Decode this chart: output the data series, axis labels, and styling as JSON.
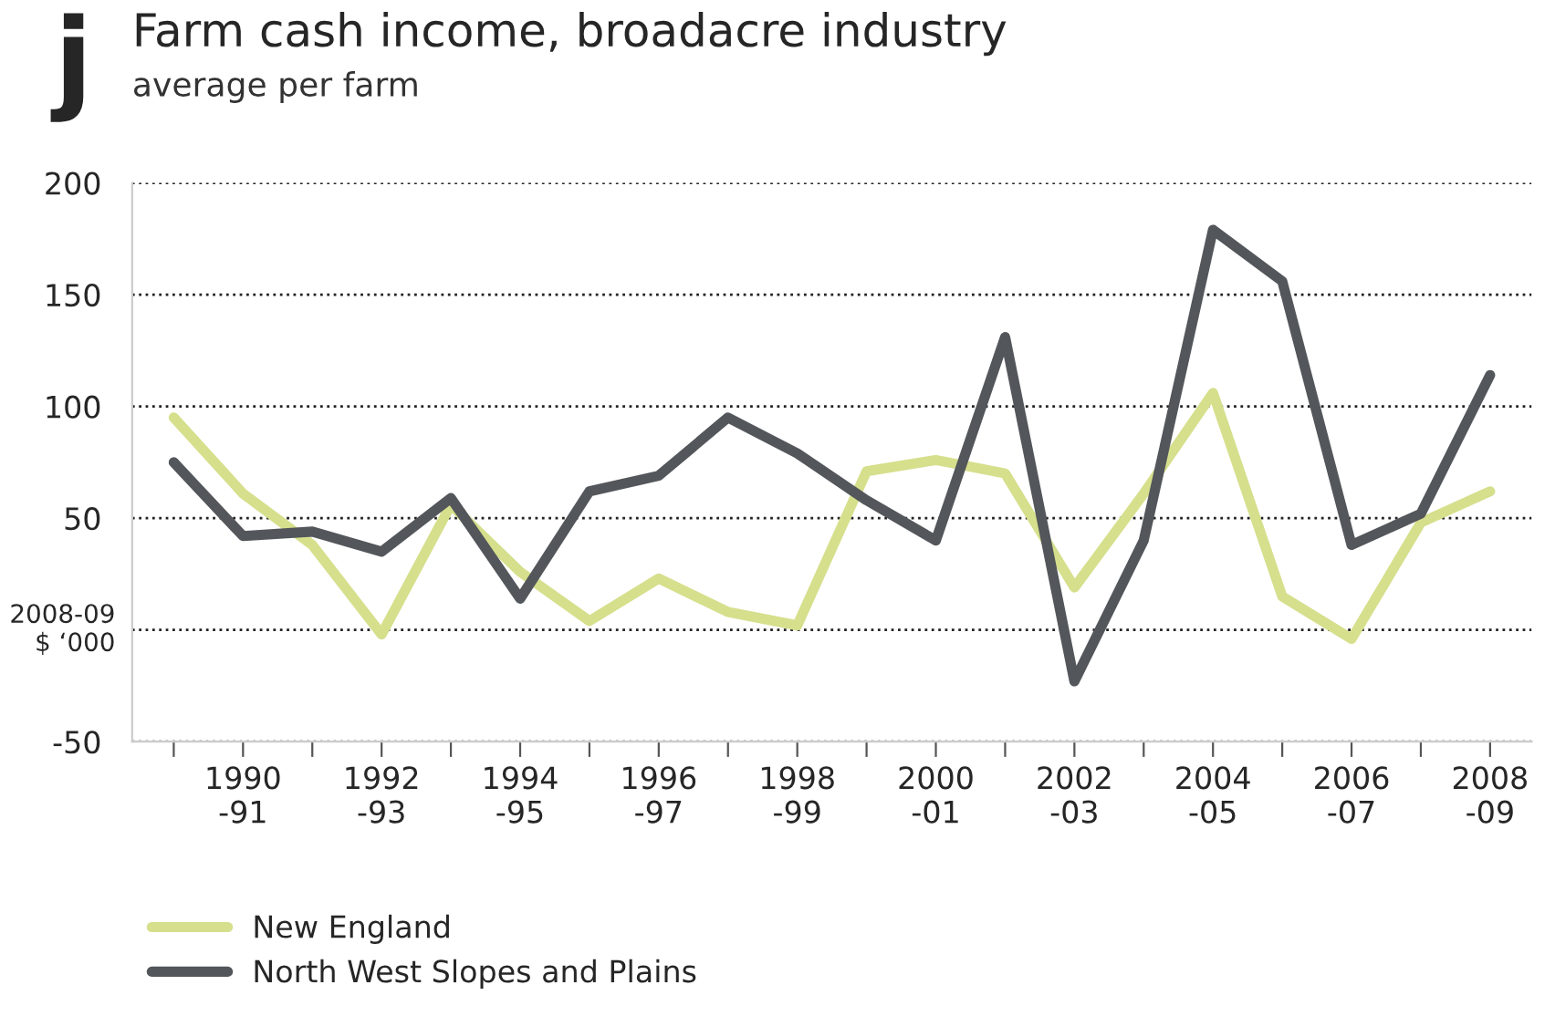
{
  "chart_data": {
    "type": "line",
    "title": "Farm cash income, broadacre industry",
    "subtitle": "average per farm",
    "ylabel": "2008-09\n$ ‘000",
    "annotations": [
      "j"
    ],
    "categories": [
      null,
      "1990\n-91",
      null,
      "1992\n-93",
      null,
      "1994\n-95",
      null,
      "1996\n-97",
      null,
      "1998\n-99",
      null,
      "2000\n-01",
      null,
      "2002\n-03",
      null,
      "2004\n-05",
      null,
      "2006\n-07",
      null,
      "2008\n-09"
    ],
    "series": [
      {
        "name": "New England",
        "color": "#d6df8c",
        "values": [
          95,
          61,
          38,
          -2,
          56,
          26,
          4,
          23,
          8,
          2,
          71,
          76,
          70,
          19,
          61,
          106,
          15,
          -4,
          48,
          62
        ]
      },
      {
        "name": "North West Slopes and Plains",
        "color": "#53565a",
        "values": [
          75,
          42,
          44,
          35,
          59,
          14,
          62,
          69,
          95,
          79,
          58,
          40,
          131,
          -23,
          40,
          179,
          156,
          38,
          52,
          114
        ]
      }
    ],
    "ylim": [
      -50,
      200
    ],
    "yticks": [
      -50,
      {
        "value": 0,
        "label": null
      },
      50,
      100,
      150,
      200
    ],
    "grid": "y",
    "legend": "bottom left",
    "marker": "none",
    "line_style": "solid"
  }
}
